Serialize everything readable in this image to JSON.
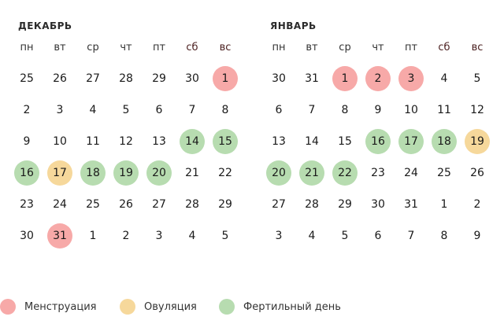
{
  "colors": {
    "menstruation": "#f7a9a8",
    "ovulation": "#f6d89b",
    "fertile": "#b7dcb0"
  },
  "weekdays": [
    "пн",
    "вт",
    "ср",
    "чт",
    "пт",
    "сб",
    "вс"
  ],
  "months": [
    {
      "title": "ДЕКАБРЬ",
      "weeks": [
        [
          {
            "d": "25"
          },
          {
            "d": "26"
          },
          {
            "d": "27"
          },
          {
            "d": "28"
          },
          {
            "d": "29"
          },
          {
            "d": "30"
          },
          {
            "d": "1",
            "t": "menstruation"
          }
        ],
        [
          {
            "d": "2"
          },
          {
            "d": "3"
          },
          {
            "d": "4"
          },
          {
            "d": "5"
          },
          {
            "d": "6"
          },
          {
            "d": "7"
          },
          {
            "d": "8"
          }
        ],
        [
          {
            "d": "9"
          },
          {
            "d": "10"
          },
          {
            "d": "11"
          },
          {
            "d": "12"
          },
          {
            "d": "13"
          },
          {
            "d": "14",
            "t": "fertile"
          },
          {
            "d": "15",
            "t": "fertile"
          }
        ],
        [
          {
            "d": "16",
            "t": "fertile"
          },
          {
            "d": "17",
            "t": "ovulation"
          },
          {
            "d": "18",
            "t": "fertile"
          },
          {
            "d": "19",
            "t": "fertile"
          },
          {
            "d": "20",
            "t": "fertile"
          },
          {
            "d": "21"
          },
          {
            "d": "22"
          }
        ],
        [
          {
            "d": "23"
          },
          {
            "d": "24"
          },
          {
            "d": "25"
          },
          {
            "d": "26"
          },
          {
            "d": "27"
          },
          {
            "d": "28"
          },
          {
            "d": "29"
          }
        ],
        [
          {
            "d": "30"
          },
          {
            "d": "31",
            "t": "menstruation"
          },
          {
            "d": "1"
          },
          {
            "d": "2"
          },
          {
            "d": "3"
          },
          {
            "d": "4"
          },
          {
            "d": "5"
          }
        ]
      ]
    },
    {
      "title": "ЯНВАРЬ",
      "weeks": [
        [
          {
            "d": "30"
          },
          {
            "d": "31"
          },
          {
            "d": "1",
            "t": "menstruation"
          },
          {
            "d": "2",
            "t": "menstruation"
          },
          {
            "d": "3",
            "t": "menstruation"
          },
          {
            "d": "4"
          },
          {
            "d": "5"
          }
        ],
        [
          {
            "d": "6"
          },
          {
            "d": "7"
          },
          {
            "d": "8"
          },
          {
            "d": "9"
          },
          {
            "d": "10"
          },
          {
            "d": "11"
          },
          {
            "d": "12"
          }
        ],
        [
          {
            "d": "13"
          },
          {
            "d": "14"
          },
          {
            "d": "15"
          },
          {
            "d": "16",
            "t": "fertile"
          },
          {
            "d": "17",
            "t": "fertile"
          },
          {
            "d": "18",
            "t": "fertile"
          },
          {
            "d": "19",
            "t": "ovulation"
          }
        ],
        [
          {
            "d": "20",
            "t": "fertile"
          },
          {
            "d": "21",
            "t": "fertile"
          },
          {
            "d": "22",
            "t": "fertile"
          },
          {
            "d": "23"
          },
          {
            "d": "24"
          },
          {
            "d": "25"
          },
          {
            "d": "26"
          }
        ],
        [
          {
            "d": "27"
          },
          {
            "d": "28"
          },
          {
            "d": "29"
          },
          {
            "d": "30"
          },
          {
            "d": "31"
          },
          {
            "d": "1"
          },
          {
            "d": "2"
          }
        ],
        [
          {
            "d": "3"
          },
          {
            "d": "4"
          },
          {
            "d": "5"
          },
          {
            "d": "6"
          },
          {
            "d": "7"
          },
          {
            "d": "8"
          },
          {
            "d": "9"
          }
        ]
      ]
    }
  ],
  "legend": [
    {
      "key": "menstruation",
      "label": "Менструация"
    },
    {
      "key": "ovulation",
      "label": "Овуляция"
    },
    {
      "key": "fertile",
      "label": "Фертильный день"
    }
  ]
}
